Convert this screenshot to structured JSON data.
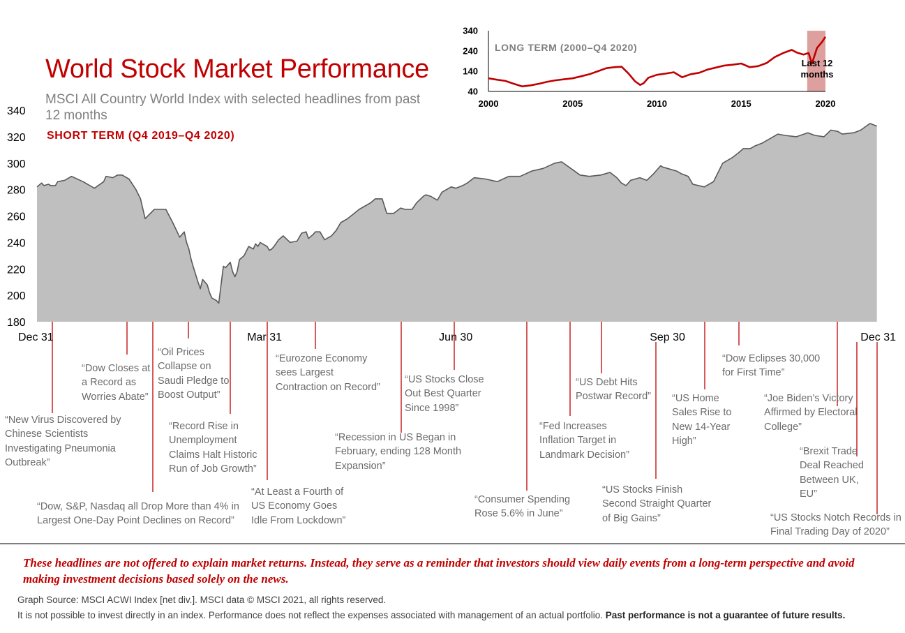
{
  "header": {
    "title": "World Stock Market Performance",
    "subtitle": "MSCI All Country World Index with selected headlines from past 12 months",
    "short_term_label": "SHORT TERM (Q4 2019–Q4 2020)"
  },
  "colors": {
    "title_red": "#c00000",
    "area_fill": "#bfbfbf",
    "area_line": "#595959",
    "headline_leader": "#c00000",
    "long_term_line": "#c00000",
    "highlight_band": "#d99694"
  },
  "chart_data": [
    {
      "type": "area",
      "title": "SHORT TERM (Q4 2019–Q4 2020)",
      "ylim": [
        180,
        340
      ],
      "y_ticks": [
        "180",
        "200",
        "220",
        "240",
        "260",
        "280",
        "300",
        "320",
        "340"
      ],
      "x_ticks": [
        {
          "label": "Dec 31",
          "day": 0
        },
        {
          "label": "Mar 31",
          "day": 91
        },
        {
          "label": "Jun 30",
          "day": 182
        },
        {
          "label": "Sep 30",
          "day": 274
        },
        {
          "label": "Dec 31",
          "day": 366
        }
      ],
      "grid": false,
      "series": [
        {
          "x": [
            0,
            2,
            3,
            5,
            6,
            8,
            9,
            12,
            15,
            20,
            25,
            29,
            30,
            33,
            35,
            37,
            40,
            43,
            45,
            47,
            51,
            56,
            59,
            62,
            64,
            65,
            66,
            67,
            68,
            70,
            71,
            72,
            74,
            75,
            76,
            77,
            78,
            79,
            80,
            81,
            82,
            83,
            84,
            85,
            86,
            87,
            88,
            90,
            92,
            94,
            95,
            96,
            97,
            100,
            101,
            102,
            103,
            105,
            107,
            110,
            113,
            115,
            117,
            118,
            120,
            121,
            123,
            125,
            128,
            130,
            132,
            135,
            140,
            145,
            147,
            150,
            152,
            155,
            158,
            160,
            163,
            165,
            168,
            169,
            171,
            174,
            176,
            180,
            182,
            185,
            187,
            190,
            195,
            200,
            205,
            210,
            215,
            220,
            225,
            228,
            232,
            236,
            240,
            245,
            249,
            252,
            254,
            256,
            258,
            262,
            265,
            268,
            271,
            272,
            274,
            278,
            280,
            283,
            285,
            290,
            294,
            298,
            302,
            305,
            307,
            310,
            312,
            315,
            318,
            322,
            325,
            330,
            335,
            338,
            342,
            345,
            348,
            350,
            355,
            358,
            362,
            365
          ],
          "y": [
            282,
            285,
            283,
            284,
            283,
            283,
            286,
            287,
            290,
            286,
            281,
            286,
            290,
            289,
            291,
            291,
            288,
            280,
            273,
            258,
            265,
            265,
            255,
            244,
            248,
            240,
            235,
            227,
            221,
            210,
            205,
            212,
            208,
            202,
            198,
            197,
            196,
            194,
            208,
            222,
            221,
            223,
            225,
            218,
            214,
            218,
            227,
            230,
            237,
            235,
            239,
            237,
            240,
            237,
            234,
            235,
            237,
            242,
            245,
            240,
            241,
            247,
            248,
            243,
            246,
            248,
            248,
            242,
            245,
            249,
            255,
            258,
            265,
            270,
            273,
            273,
            262,
            262,
            266,
            265,
            265,
            270,
            275,
            276,
            275,
            272,
            278,
            282,
            281,
            283,
            285,
            289,
            288,
            286,
            290,
            290,
            294,
            296,
            300,
            301,
            296,
            291,
            290,
            291,
            293,
            289,
            285,
            283,
            287,
            289,
            287,
            292,
            298,
            297,
            296,
            294,
            292,
            290,
            284,
            282,
            286,
            300,
            304,
            308,
            311,
            311,
            313,
            315,
            318,
            322,
            321,
            320,
            323,
            321,
            320,
            325,
            324,
            322,
            323,
            325,
            330,
            328
          ]
        }
      ]
    },
    {
      "type": "line",
      "title": "LONG TERM (2000–Q4 2020)",
      "xlim": [
        2000,
        2020
      ],
      "ylim": [
        40,
        340
      ],
      "y_ticks": [
        "40",
        "140",
        "240",
        "340"
      ],
      "x_ticks": [
        "2000",
        "2005",
        "2010",
        "2015",
        "2020"
      ],
      "highlight": {
        "from": 2019.0,
        "to": 2020.0,
        "label": "Last 12 months"
      },
      "series": [
        {
          "x": [
            2000,
            2000.5,
            2001,
            2001.5,
            2002,
            2002.5,
            2003,
            2003.5,
            2004,
            2004.5,
            2005,
            2005.5,
            2006,
            2006.5,
            2007,
            2007.5,
            2007.9,
            2008.3,
            2008.7,
            2009.0,
            2009.2,
            2009.5,
            2010,
            2010.5,
            2011,
            2011.5,
            2012,
            2012.5,
            2013,
            2013.5,
            2014,
            2014.5,
            2015,
            2015.5,
            2016,
            2016.5,
            2017,
            2017.5,
            2018,
            2018.3,
            2018.7,
            2019.0,
            2019.2,
            2019.5,
            2019.8,
            2020.0
          ],
          "y": [
            105,
            98,
            92,
            78,
            65,
            70,
            78,
            88,
            95,
            100,
            105,
            115,
            125,
            140,
            155,
            160,
            162,
            130,
            90,
            72,
            80,
            108,
            122,
            128,
            135,
            110,
            125,
            132,
            148,
            158,
            168,
            172,
            178,
            160,
            165,
            180,
            210,
            230,
            245,
            232,
            222,
            230,
            178,
            255,
            285,
            310
          ]
        }
      ]
    }
  ],
  "headlines": [
    "“New Virus Discovered by Chinese Scientists Investigating Pneumonia Outbreak”",
    "“Dow Closes at a Record as Worries Abate”",
    "“Dow, S&P, Nasdaq all Drop More than 4% in Largest One-Day Point Declines on Record”",
    "“Oil Prices Collapse on Saudi Pledge to Boost Output”",
    "“Record Rise in Unemployment Claims Halt Historic Run of Job Growth”",
    "“At Least a Fourth of US Economy Goes Idle From Lockdown”",
    "“Eurozone Economy sees Largest Contraction on Record”",
    "“Recession in US Began in February, ending 128 Month Expansion”",
    "“US Stocks Close Out Best Quarter Since 1998”",
    "“Consumer Spending Rose 5.6% in June”",
    "“Fed Increases Inflation Target in Landmark Decision”",
    "“US Debt Hits Postwar Record”",
    "“US Stocks Finish Second Straight Quarter of Big Gains”",
    "“US Home Sales Rise to New 14-Year High”",
    "“Dow Eclipses 30,000 for First Time”",
    "“Joe Biden’s Victory Affirmed by Electoral College”",
    "“Brexit Trade Deal Reached Between UK, EU”",
    "“US Stocks Notch Records in Final Trading Day of 2020”"
  ],
  "footer": {
    "disclaimer": "These headlines are not offered to explain market returns. Instead, they serve as a reminder that investors should view daily events from a long-term perspective and avoid making investment decisions based solely on the news.",
    "source": "Graph Source: MSCI ACWI Index [net div.]. MSCI data © MSCI 2021, all rights reserved.",
    "note": "It is not possible to invest directly in an index. Performance does not reflect the expenses associated with management of an actual portfolio.",
    "note_bold": "Past performance is not a guarantee of future results."
  }
}
